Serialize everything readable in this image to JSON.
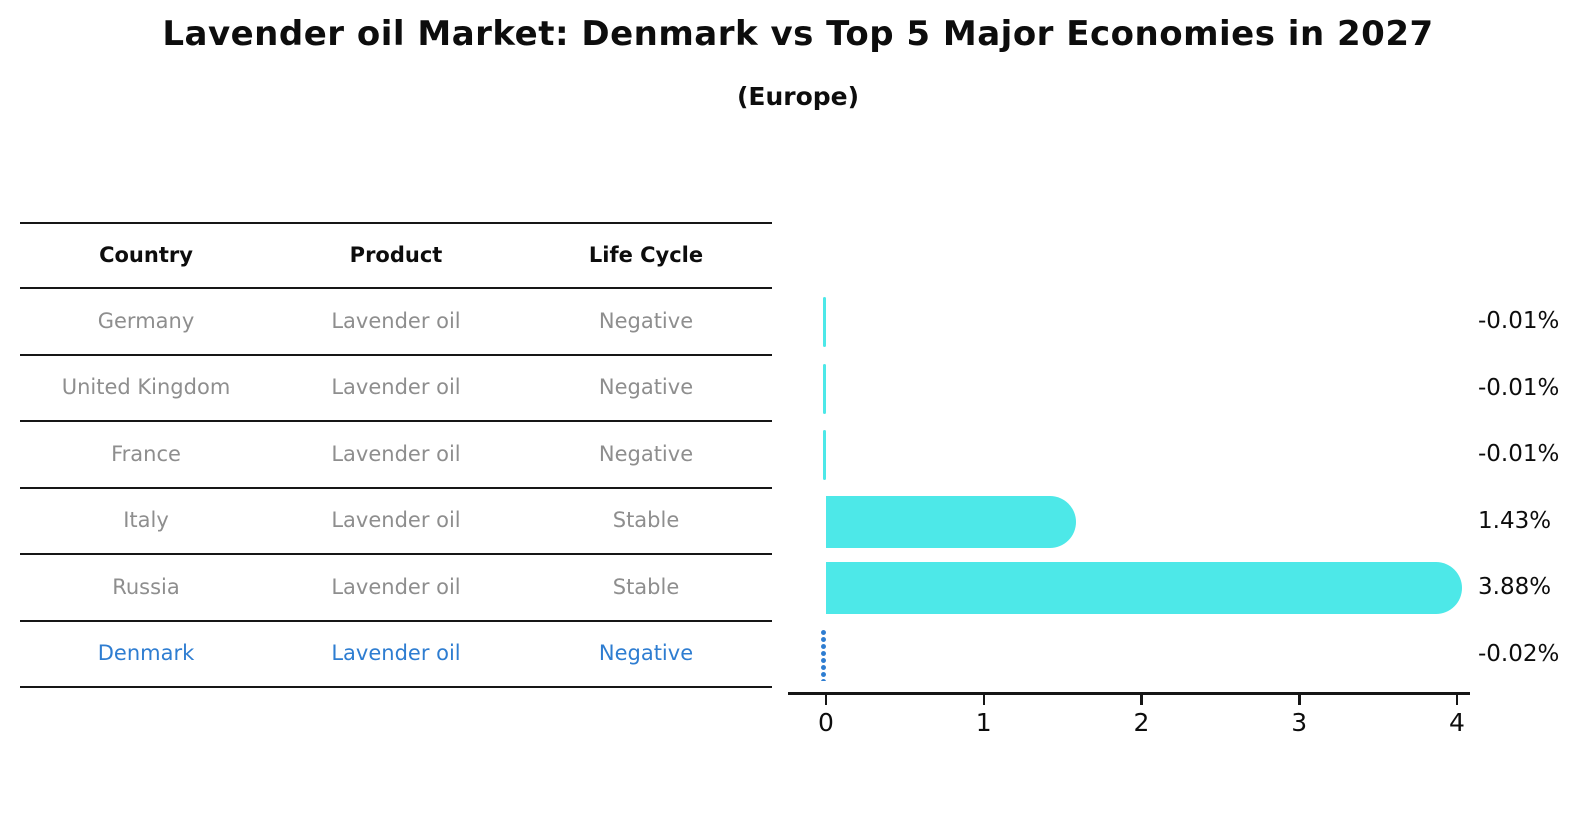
{
  "title": "Lavender oil Market: Denmark vs Top 5 Major Economies in 2027",
  "subtitle": "(Europe)",
  "table": {
    "headers": [
      "Country",
      "Product",
      "Life Cycle"
    ],
    "rows": [
      {
        "country": "Germany",
        "product": "Lavender oil",
        "life_cycle": "Negative",
        "highlight": false
      },
      {
        "country": "United Kingdom",
        "product": "Lavender oil",
        "life_cycle": "Negative",
        "highlight": false
      },
      {
        "country": "France",
        "product": "Lavender oil",
        "life_cycle": "Negative",
        "highlight": false
      },
      {
        "country": "Italy",
        "product": "Lavender oil",
        "life_cycle": "Stable",
        "highlight": false
      },
      {
        "country": "Russia",
        "product": "Lavender oil",
        "life_cycle": "Stable",
        "highlight": false
      },
      {
        "country": "Denmark",
        "product": "Lavender oil",
        "life_cycle": "Negative",
        "highlight": true
      }
    ]
  },
  "chart_data": {
    "type": "bar",
    "orientation": "horizontal",
    "title": "Lavender oil Market: Denmark vs Top 5 Major Economies in 2027 (Europe)",
    "categories": [
      "Germany",
      "United Kingdom",
      "France",
      "Italy",
      "Russia",
      "Denmark"
    ],
    "values": [
      -0.01,
      -0.01,
      -0.01,
      1.43,
      3.88,
      -0.02
    ],
    "value_labels": [
      "-0.01%",
      "-0.01%",
      "-0.01%",
      "1.43%",
      "3.88%",
      "-0.02%"
    ],
    "unit": "percent",
    "xlim": [
      0,
      4
    ],
    "x_ticks": [
      0,
      1,
      2,
      3,
      4
    ],
    "x_tick_labels": [
      "0",
      "1",
      "2",
      "3",
      "4"
    ],
    "grid": false,
    "legend": false,
    "highlight_category": "Denmark",
    "highlight_marker": "dotted-vertical-line"
  },
  "colors": {
    "bar": "#4de8e8",
    "highlight": "#2e7dd1",
    "muted_text": "#8e8e8e",
    "axis": "#161616",
    "background": "#ffffff"
  }
}
